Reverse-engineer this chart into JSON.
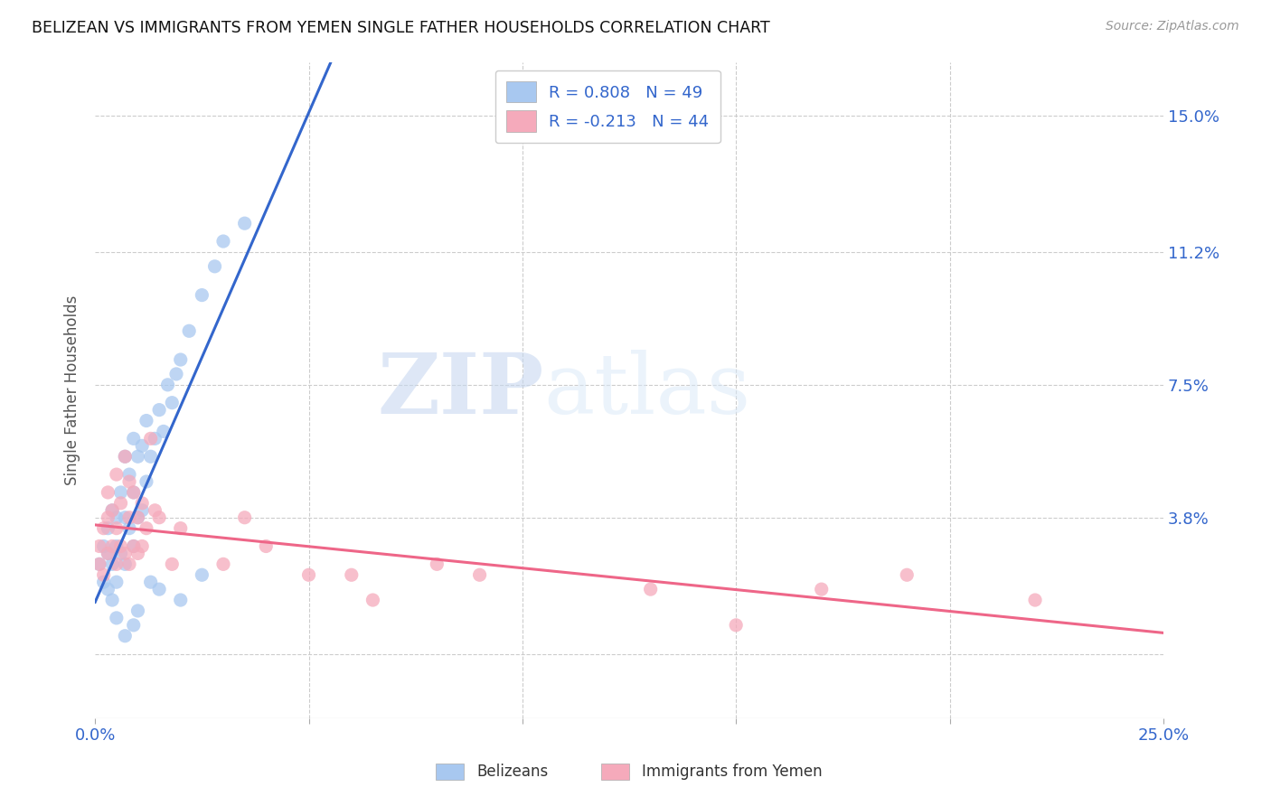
{
  "title": "BELIZEAN VS IMMIGRANTS FROM YEMEN SINGLE FATHER HOUSEHOLDS CORRELATION CHART",
  "source": "Source: ZipAtlas.com",
  "ylabel": "Single Father Households",
  "xlim": [
    0.0,
    0.25
  ],
  "ylim": [
    -0.018,
    0.165
  ],
  "xticks": [
    0.0,
    0.05,
    0.1,
    0.15,
    0.2,
    0.25
  ],
  "yticks": [
    0.0,
    0.038,
    0.075,
    0.112,
    0.15
  ],
  "yticklabels": [
    "",
    "3.8%",
    "7.5%",
    "11.2%",
    "15.0%"
  ],
  "watermark_zip": "ZIP",
  "watermark_atlas": "atlas",
  "legend_r1": "R = 0.808",
  "legend_n1": "N = 49",
  "legend_r2": "R = -0.213",
  "legend_n2": "N = 44",
  "legend_label1": "Belizeans",
  "legend_label2": "Immigrants from Yemen",
  "color_blue": "#A8C8F0",
  "color_pink": "#F5AABB",
  "line_blue": "#3366CC",
  "line_pink": "#EE6688",
  "belizean_x": [
    0.001,
    0.002,
    0.002,
    0.003,
    0.003,
    0.003,
    0.004,
    0.004,
    0.004,
    0.005,
    0.005,
    0.005,
    0.006,
    0.006,
    0.007,
    0.007,
    0.007,
    0.008,
    0.008,
    0.009,
    0.009,
    0.009,
    0.01,
    0.01,
    0.011,
    0.011,
    0.012,
    0.012,
    0.013,
    0.014,
    0.015,
    0.016,
    0.017,
    0.018,
    0.019,
    0.02,
    0.022,
    0.025,
    0.028,
    0.03,
    0.035,
    0.005,
    0.007,
    0.009,
    0.01,
    0.013,
    0.015,
    0.02,
    0.025
  ],
  "belizean_y": [
    0.025,
    0.02,
    0.03,
    0.018,
    0.028,
    0.035,
    0.015,
    0.025,
    0.04,
    0.02,
    0.03,
    0.038,
    0.028,
    0.045,
    0.025,
    0.038,
    0.055,
    0.035,
    0.05,
    0.03,
    0.045,
    0.06,
    0.038,
    0.055,
    0.04,
    0.058,
    0.048,
    0.065,
    0.055,
    0.06,
    0.068,
    0.062,
    0.075,
    0.07,
    0.078,
    0.082,
    0.09,
    0.1,
    0.108,
    0.115,
    0.12,
    0.01,
    0.005,
    0.008,
    0.012,
    0.02,
    0.018,
    0.015,
    0.022
  ],
  "yemen_x": [
    0.001,
    0.001,
    0.002,
    0.002,
    0.003,
    0.003,
    0.003,
    0.004,
    0.004,
    0.005,
    0.005,
    0.005,
    0.006,
    0.006,
    0.007,
    0.007,
    0.008,
    0.008,
    0.008,
    0.009,
    0.009,
    0.01,
    0.01,
    0.011,
    0.011,
    0.012,
    0.013,
    0.014,
    0.015,
    0.018,
    0.02,
    0.03,
    0.035,
    0.04,
    0.05,
    0.06,
    0.065,
    0.08,
    0.09,
    0.13,
    0.15,
    0.17,
    0.19,
    0.22
  ],
  "yemen_y": [
    0.025,
    0.03,
    0.022,
    0.035,
    0.028,
    0.038,
    0.045,
    0.03,
    0.04,
    0.025,
    0.035,
    0.05,
    0.03,
    0.042,
    0.028,
    0.055,
    0.025,
    0.038,
    0.048,
    0.03,
    0.045,
    0.028,
    0.038,
    0.03,
    0.042,
    0.035,
    0.06,
    0.04,
    0.038,
    0.025,
    0.035,
    0.025,
    0.038,
    0.03,
    0.022,
    0.022,
    0.015,
    0.025,
    0.022,
    0.018,
    0.008,
    0.018,
    0.022,
    0.015
  ]
}
